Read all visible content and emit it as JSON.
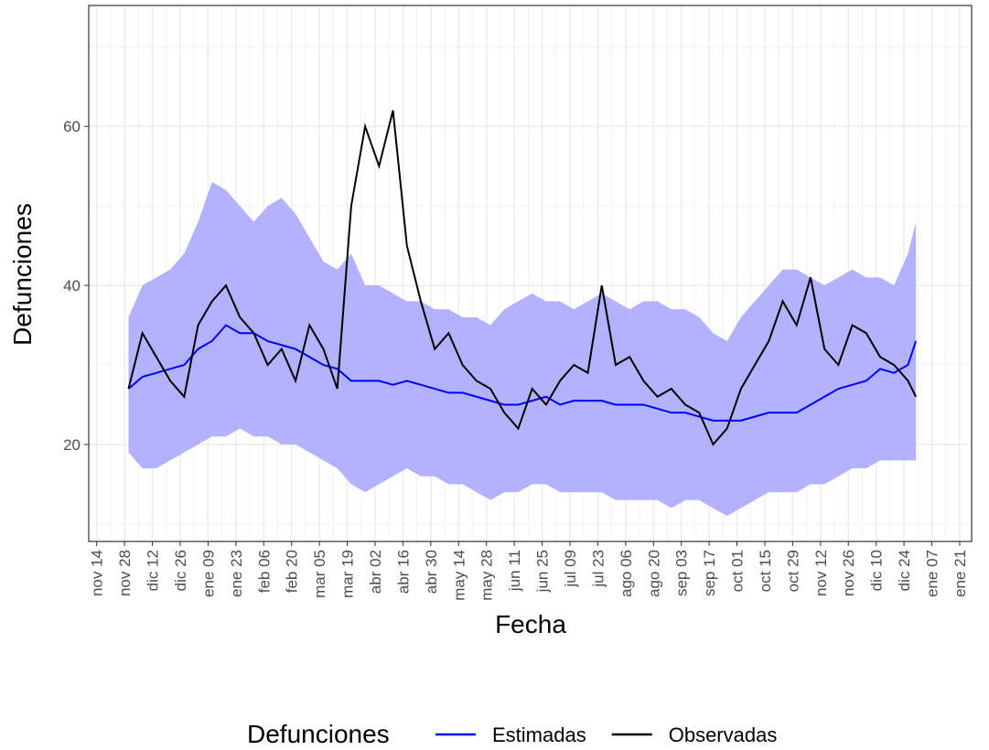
{
  "chart_data": {
    "type": "line",
    "xlabel": "Fecha",
    "ylabel": "Defunciones",
    "legend_title": "Defunciones",
    "legend_position": "bottom",
    "grid": true,
    "xlim": [
      "nov 10",
      "ene 27"
    ],
    "ylim": [
      7.8,
      75.2
    ],
    "yticks": [
      20,
      40,
      60
    ],
    "xticks": [
      "nov 14",
      "nov 28",
      "dic 12",
      "dic 26",
      "ene 09",
      "ene 23",
      "feb 06",
      "feb 20",
      "mar 05",
      "mar 19",
      "abr 02",
      "abr 16",
      "abr 30",
      "may 14",
      "may 28",
      "jun 11",
      "jun 25",
      "jul 09",
      "jul 23",
      "ago 06",
      "ago 20",
      "sep 03",
      "sep 17",
      "oct 01",
      "oct 15",
      "oct 29",
      "nov 12",
      "nov 26",
      "dic 10",
      "dic 24",
      "ene 07",
      "ene 21"
    ],
    "x": [
      "nov 30",
      "dic 07",
      "dic 14",
      "dic 21",
      "dic 28",
      "ene 04",
      "ene 11",
      "ene 18",
      "ene 25",
      "feb 01",
      "feb 08",
      "feb 15",
      "feb 22",
      "feb 29",
      "mar 07",
      "mar 14",
      "mar 21",
      "mar 28",
      "abr 04",
      "abr 11",
      "abr 18",
      "abr 25",
      "may 02",
      "may 09",
      "may 16",
      "may 23",
      "may 30",
      "jun 06",
      "jun 13",
      "jun 20",
      "jun 27",
      "jul 04",
      "jul 11",
      "jul 18",
      "jul 25",
      "ago 01",
      "ago 08",
      "ago 15",
      "ago 22",
      "ago 29",
      "sep 05",
      "sep 12",
      "sep 19",
      "sep 26",
      "oct 03",
      "oct 10",
      "oct 17",
      "oct 24",
      "oct 31",
      "nov 07",
      "nov 14",
      "nov 21",
      "nov 28",
      "dic 05",
      "dic 12",
      "dic 19",
      "dic 26",
      "dic 30"
    ],
    "band": {
      "color": "#aaaaff",
      "lower": [
        19,
        17,
        17,
        18,
        19,
        20,
        21,
        21,
        22,
        21,
        21,
        20,
        20,
        19,
        18,
        17,
        15,
        14,
        15,
        16,
        17,
        16,
        16,
        15,
        15,
        14,
        13,
        14,
        14,
        15,
        15,
        14,
        14,
        14,
        14,
        13,
        13,
        13,
        13,
        12,
        13,
        13,
        12,
        11,
        12,
        13,
        14,
        14,
        14,
        15,
        15,
        16,
        17,
        17,
        18,
        18,
        18,
        18
      ],
      "upper": [
        36,
        40,
        41,
        42,
        44,
        48,
        53,
        52,
        50,
        48,
        50,
        51,
        49,
        46,
        43,
        42,
        44,
        40,
        40,
        39,
        38,
        38,
        37,
        37,
        36,
        36,
        35,
        37,
        38,
        39,
        38,
        38,
        37,
        38,
        39,
        38,
        37,
        38,
        38,
        37,
        37,
        36,
        34,
        33,
        36,
        38,
        40,
        42,
        42,
        41,
        40,
        41,
        42,
        41,
        41,
        40,
        44,
        48
      ]
    },
    "series": [
      {
        "name": "Estimadas",
        "color": "#0000ff",
        "values": [
          27,
          28.5,
          29,
          29.5,
          30,
          32,
          33,
          35,
          34,
          34,
          33,
          32.5,
          32,
          31,
          30,
          29.5,
          28,
          28,
          28,
          27.5,
          28,
          27.5,
          27,
          26.5,
          26.5,
          26,
          25.5,
          25,
          25,
          25.5,
          26,
          25,
          25.5,
          25.5,
          25.5,
          25,
          25,
          25,
          24.5,
          24,
          24,
          23.5,
          23,
          23,
          23,
          23.5,
          24,
          24,
          24,
          25,
          26,
          27,
          27.5,
          28,
          29.5,
          29,
          30,
          33
        ]
      },
      {
        "name": "Observadas",
        "color": "#000000",
        "values": [
          27,
          34,
          31,
          28,
          26,
          35,
          38,
          40,
          36,
          34,
          30,
          32,
          28,
          35,
          32,
          27,
          50,
          60,
          55,
          62,
          45,
          38,
          32,
          34,
          30,
          28,
          27,
          24,
          22,
          27,
          25,
          28,
          30,
          29,
          40,
          30,
          31,
          28,
          26,
          27,
          25,
          24,
          20,
          22,
          27,
          30,
          33,
          38,
          35,
          41,
          32,
          30,
          35,
          34,
          31,
          30,
          28,
          26
        ]
      }
    ]
  }
}
